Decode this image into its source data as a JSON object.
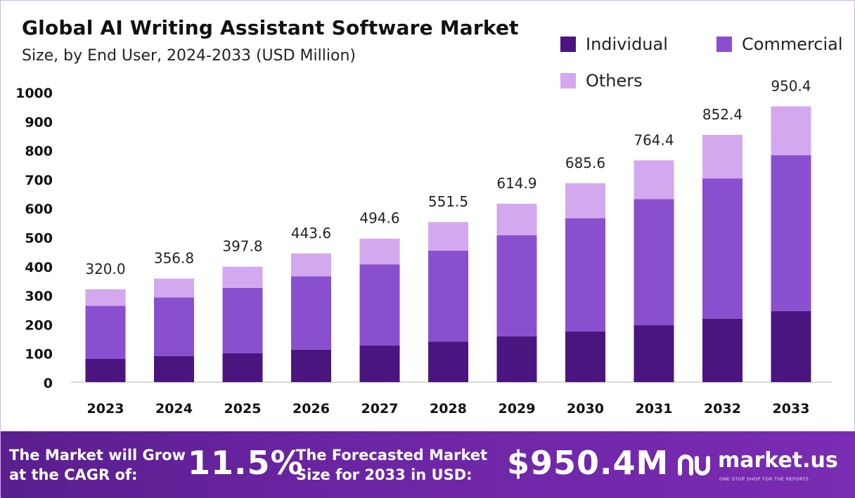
{
  "title": "Global AI Writing Assistant Software Market",
  "subtitle": "Size, by End User, 2024-2033 (USD Million)",
  "colors": {
    "individual": "#4b1580",
    "commercial": "#8a4fce",
    "others": "#d3a8ee",
    "axis": "#cccccc",
    "text": "#111111"
  },
  "chart_data": {
    "type": "bar",
    "stacked": true,
    "categories": [
      "2023",
      "2024",
      "2025",
      "2026",
      "2027",
      "2028",
      "2029",
      "2030",
      "2031",
      "2032",
      "2033"
    ],
    "series": [
      {
        "name": "Individual",
        "values": [
          80,
          90,
          100,
          112,
          126,
          140,
          158,
          175,
          196,
          218,
          245
        ]
      },
      {
        "name": "Commercial",
        "values": [
          183,
          202,
          225,
          253,
          280,
          313,
          348,
          390,
          435,
          484,
          537
        ]
      },
      {
        "name": "Others",
        "values": [
          57,
          64.8,
          72.8,
          78.6,
          88.6,
          98.5,
          108.9,
          120.6,
          133.4,
          150.4,
          168.4
        ]
      }
    ],
    "totals": [
      "320.0",
      "356.8",
      "397.8",
      "443.6",
      "494.6",
      "551.5",
      "614.9",
      "685.6",
      "764.4",
      "852.4",
      "950.4"
    ],
    "yticks": [
      0,
      100,
      200,
      300,
      400,
      500,
      600,
      700,
      800,
      900,
      1000
    ],
    "ylim": [
      0,
      1000
    ],
    "grid": false,
    "legend_position": "top-right"
  },
  "legend": {
    "individual": "Individual",
    "commercial": "Commercial",
    "others": "Others"
  },
  "footer": {
    "cagr_line1": "The Market will Grow",
    "cagr_line2": "at the CAGR of:",
    "cagr_value": "11.5%",
    "forecast_line1": "The Forecasted Market",
    "forecast_line2": "Size for 2033 in USD:",
    "forecast_value": "$950.4M",
    "brand": "market.us",
    "brand_tagline": "ONE STOP SHOP FOR THE REPORTS"
  }
}
